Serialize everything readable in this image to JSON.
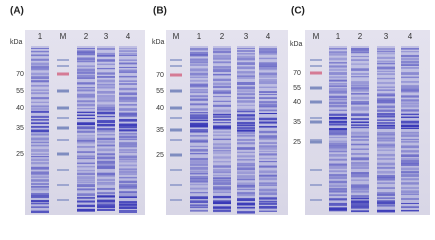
{
  "panels": [
    {
      "label": "(A)",
      "unit": "kDa",
      "lanes": [
        "1",
        "M",
        "2",
        "3",
        "4"
      ],
      "markers": [
        "70",
        "55",
        "40",
        "35",
        "25"
      ]
    },
    {
      "label": "(B)",
      "unit": "kDa",
      "lanes": [
        "M",
        "1",
        "2",
        "3",
        "4"
      ],
      "markers": [
        "70",
        "55",
        "40",
        "35",
        "25"
      ]
    },
    {
      "label": "(C)",
      "unit": "kDa",
      "lanes": [
        "M",
        "1",
        "2",
        "3",
        "4"
      ],
      "markers": [
        "70",
        "55",
        "40",
        "35",
        "25"
      ]
    }
  ]
}
